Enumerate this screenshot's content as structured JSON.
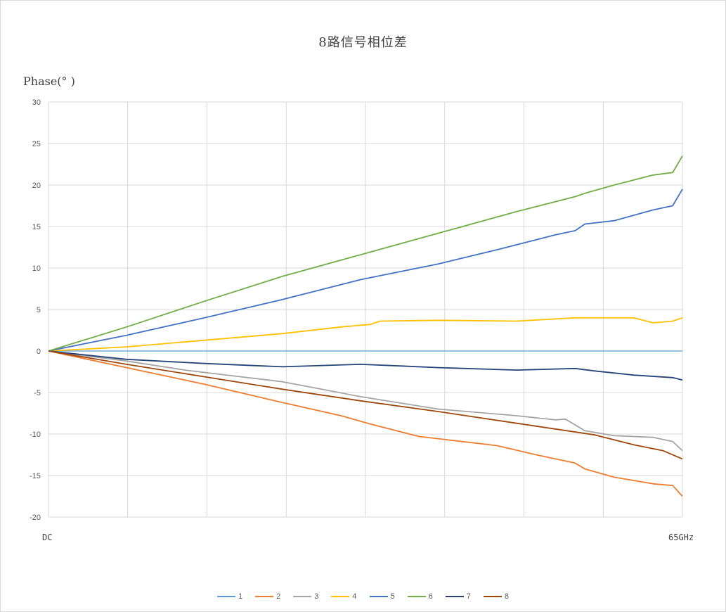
{
  "chart_data": {
    "type": "line",
    "title": "8路信号相位差",
    "ylabel": "Phase(° )",
    "x_start_label": "DC",
    "x_end_label": "65GHz",
    "xlim": [
      0,
      65
    ],
    "ylim": [
      -20,
      30
    ],
    "yticks": [
      30,
      25,
      20,
      15,
      10,
      5,
      0,
      -5,
      -10,
      -15,
      -20
    ],
    "ytick_labels": [
      "30",
      "25",
      "20",
      "15",
      "10",
      "5",
      "0",
      "-5",
      "-10",
      "-15",
      "-20"
    ],
    "grid": true,
    "legend_position": "bottom",
    "series": [
      {
        "name": "1",
        "color": "#5B9BD5",
        "width": 1.3,
        "points": [
          [
            0,
            0
          ],
          [
            65,
            0
          ]
        ]
      },
      {
        "name": "2",
        "color": "#ED7D31",
        "width": 1.8,
        "points": [
          [
            0,
            0
          ],
          [
            16,
            -4
          ],
          [
            24,
            -6.2
          ],
          [
            30,
            -7.8
          ],
          [
            33,
            -8.8
          ],
          [
            37,
            -10
          ],
          [
            38,
            -10.3
          ],
          [
            46,
            -11.4
          ],
          [
            50,
            -12.5
          ],
          [
            54,
            -13.5
          ],
          [
            55,
            -14.2
          ],
          [
            58,
            -15.2
          ],
          [
            62,
            -16
          ],
          [
            64,
            -16.2
          ],
          [
            65,
            -17.5
          ]
        ]
      },
      {
        "name": "3",
        "color": "#A5A5A5",
        "width": 1.8,
        "points": [
          [
            0,
            0
          ],
          [
            8,
            -1.2
          ],
          [
            14,
            -2.3
          ],
          [
            24,
            -3.7
          ],
          [
            28,
            -4.6
          ],
          [
            32,
            -5.5
          ],
          [
            40,
            -7
          ],
          [
            48,
            -7.8
          ],
          [
            52,
            -8.3
          ],
          [
            53,
            -8.2
          ],
          [
            55,
            -9.6
          ],
          [
            58,
            -10.2
          ],
          [
            62,
            -10.4
          ],
          [
            64,
            -10.9
          ],
          [
            65,
            -12
          ]
        ]
      },
      {
        "name": "4",
        "color": "#FFC000",
        "width": 1.8,
        "points": [
          [
            0,
            0
          ],
          [
            8,
            0.5
          ],
          [
            16,
            1.3
          ],
          [
            24,
            2.1
          ],
          [
            30,
            2.9
          ],
          [
            33,
            3.2
          ],
          [
            34,
            3.6
          ],
          [
            40,
            3.7
          ],
          [
            48,
            3.6
          ],
          [
            54,
            4
          ],
          [
            60,
            4
          ],
          [
            62,
            3.4
          ],
          [
            64,
            3.6
          ],
          [
            65,
            4
          ]
        ]
      },
      {
        "name": "5",
        "color": "#4472C4",
        "width": 1.8,
        "points": [
          [
            0,
            0
          ],
          [
            8,
            1.9
          ],
          [
            16,
            4
          ],
          [
            24,
            6.2
          ],
          [
            32,
            8.6
          ],
          [
            40,
            10.5
          ],
          [
            46,
            12.2
          ],
          [
            52,
            14
          ],
          [
            54,
            14.5
          ],
          [
            55,
            15.3
          ],
          [
            58,
            15.7
          ],
          [
            62,
            17
          ],
          [
            64,
            17.5
          ],
          [
            65,
            19.5
          ]
        ]
      },
      {
        "name": "6",
        "color": "#70AD47",
        "width": 1.8,
        "points": [
          [
            0,
            0
          ],
          [
            8,
            2.9
          ],
          [
            16,
            6
          ],
          [
            24,
            9
          ],
          [
            32,
            11.6
          ],
          [
            40,
            14.2
          ],
          [
            48,
            16.8
          ],
          [
            54,
            18.6
          ],
          [
            55,
            19
          ],
          [
            58,
            20
          ],
          [
            62,
            21.2
          ],
          [
            64,
            21.5
          ],
          [
            65,
            23.5
          ]
        ]
      },
      {
        "name": "7",
        "color": "#264478",
        "width": 1.8,
        "points": [
          [
            0,
            0
          ],
          [
            8,
            -1
          ],
          [
            16,
            -1.5
          ],
          [
            24,
            -1.9
          ],
          [
            32,
            -1.6
          ],
          [
            36,
            -1.8
          ],
          [
            40,
            -2
          ],
          [
            48,
            -2.3
          ],
          [
            54,
            -2.1
          ],
          [
            56,
            -2.4
          ],
          [
            60,
            -2.9
          ],
          [
            64,
            -3.2
          ],
          [
            65,
            -3.5
          ]
        ]
      },
      {
        "name": "8",
        "color": "#9E480E",
        "width": 1.8,
        "points": [
          [
            0,
            0
          ],
          [
            8,
            -1.6
          ],
          [
            16,
            -3.1
          ],
          [
            24,
            -4.6
          ],
          [
            32,
            -6
          ],
          [
            40,
            -7.3
          ],
          [
            48,
            -8.7
          ],
          [
            56,
            -10.1
          ],
          [
            60,
            -11.3
          ],
          [
            63,
            -12
          ],
          [
            65,
            -13
          ]
        ]
      }
    ]
  }
}
